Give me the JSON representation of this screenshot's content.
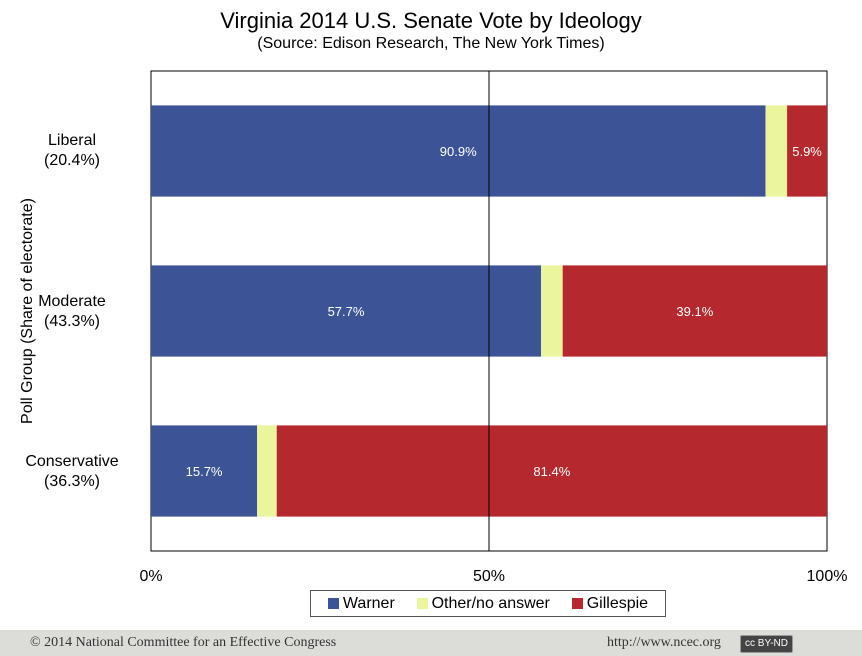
{
  "chart_data": {
    "type": "bar",
    "orientation": "horizontal",
    "stacked": true,
    "title": "Virginia 2014 U.S. Senate Vote by Ideology",
    "subtitle": "(Source: Edison Research, The New York Times)",
    "ylabel": "Poll Group (Share of electorate)",
    "xlabel": "",
    "xlim": [
      0,
      100
    ],
    "x_ticks": [
      "0%",
      "50%",
      "100%"
    ],
    "categories": [
      {
        "name": "Liberal",
        "share": "(20.4%)"
      },
      {
        "name": "Moderate",
        "share": "(43.3%)"
      },
      {
        "name": "Conservative",
        "share": "(36.3%)"
      }
    ],
    "series": [
      {
        "name": "Warner",
        "color": "#3c5496",
        "values": [
          90.9,
          57.7,
          15.7
        ],
        "labels": [
          "90.9%",
          "57.7%",
          "15.7%"
        ]
      },
      {
        "name": "Other/no answer",
        "color": "#eaf59e",
        "values": [
          3.2,
          3.2,
          2.9
        ],
        "labels": [
          "",
          "",
          ""
        ]
      },
      {
        "name": "Gillespie",
        "color": "#b5282d",
        "values": [
          5.9,
          39.1,
          81.4
        ],
        "labels": [
          "5.9%",
          "39.1%",
          "81.4%"
        ]
      }
    ],
    "legend_position": "bottom",
    "grid": false,
    "reference_line_at": 50
  },
  "footer": {
    "copyright": "© 2014 National Committee for an Effective Congress",
    "url": "http://www.ncec.org",
    "license": "cc BY-ND"
  }
}
